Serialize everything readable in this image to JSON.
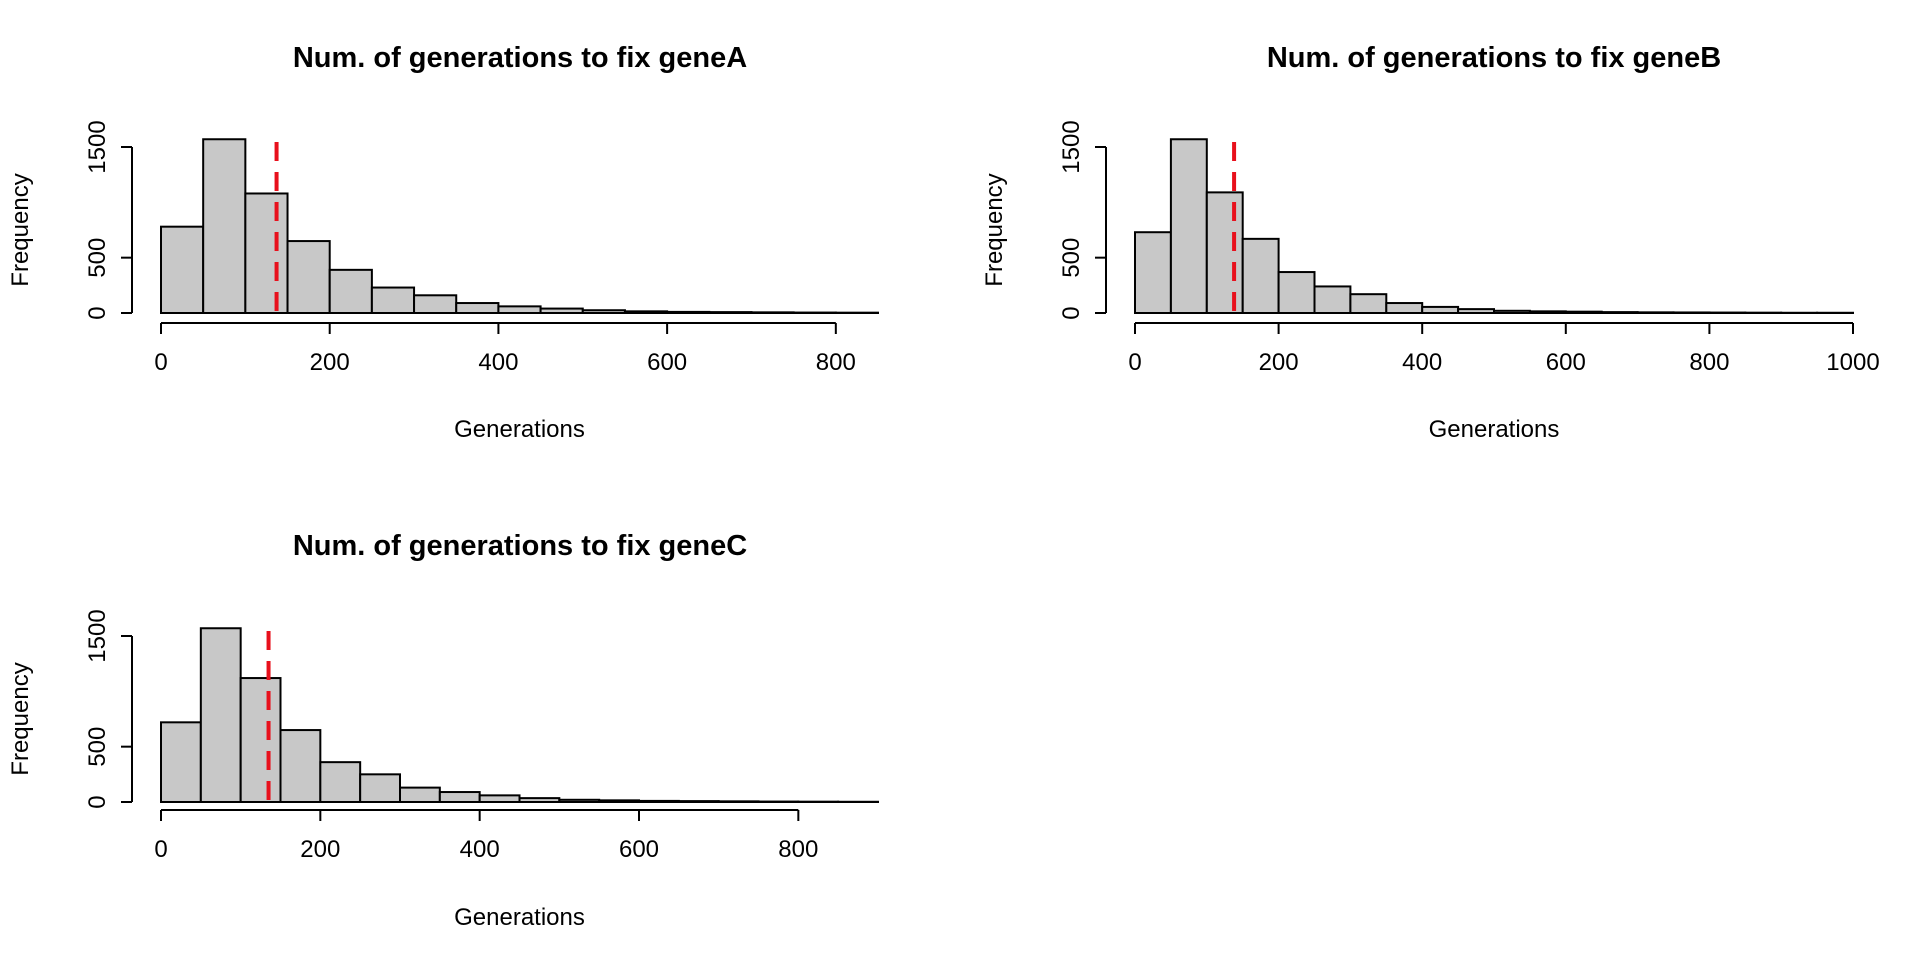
{
  "colors": {
    "bar_fill": "#c8c8c8",
    "bar_stroke": "#000000",
    "mean_line": "#e8101c"
  },
  "chart_data": [
    {
      "type": "bar",
      "subtype": "histogram",
      "title": "Num. of generations to fix  geneA",
      "xlabel": "Generations",
      "ylabel": "Frequency",
      "bin_width": 50,
      "bins": [
        0,
        50,
        100,
        150,
        200,
        250,
        300,
        350,
        400,
        450,
        500,
        550,
        600,
        650,
        700,
        750,
        800
      ],
      "values": [
        780,
        1570,
        1080,
        650,
        390,
        230,
        160,
        90,
        60,
        40,
        25,
        15,
        10,
        8,
        6,
        4,
        3
      ],
      "mean_line_x": 137,
      "xlim": [
        0,
        850
      ],
      "ylim": [
        0,
        1500
      ],
      "x_ticks": [
        0,
        200,
        400,
        600,
        800
      ],
      "y_ticks": [
        0,
        500,
        1500
      ],
      "grid": false
    },
    {
      "type": "bar",
      "subtype": "histogram",
      "title": "Num. of generations to fix  geneB",
      "xlabel": "Generations",
      "ylabel": "Frequency",
      "bin_width": 50,
      "bins": [
        0,
        50,
        100,
        150,
        200,
        250,
        300,
        350,
        400,
        450,
        500,
        550,
        600,
        650,
        700,
        750,
        800,
        850,
        900,
        950
      ],
      "values": [
        730,
        1570,
        1090,
        670,
        370,
        240,
        170,
        90,
        55,
        35,
        20,
        15,
        12,
        8,
        6,
        5,
        4,
        3,
        2,
        2
      ],
      "mean_line_x": 138,
      "xlim": [
        0,
        1000
      ],
      "ylim": [
        0,
        1500
      ],
      "x_ticks": [
        0,
        200,
        400,
        600,
        800,
        1000
      ],
      "y_ticks": [
        0,
        500,
        1500
      ],
      "grid": false
    },
    {
      "type": "bar",
      "subtype": "histogram",
      "title": "Num. of generations to fix  geneC",
      "xlabel": "Generations",
      "ylabel": "Frequency",
      "bin_width": 50,
      "bins": [
        0,
        50,
        100,
        150,
        200,
        250,
        300,
        350,
        400,
        450,
        500,
        550,
        600,
        650,
        700,
        750,
        800,
        850
      ],
      "values": [
        720,
        1570,
        1120,
        650,
        360,
        250,
        130,
        90,
        60,
        35,
        20,
        15,
        10,
        8,
        6,
        4,
        3,
        2
      ],
      "mean_line_x": 135,
      "xlim": [
        0,
        900
      ],
      "ylim": [
        0,
        1500
      ],
      "x_ticks": [
        0,
        200,
        400,
        600,
        800
      ],
      "y_ticks": [
        0,
        500,
        1500
      ],
      "grid": false
    }
  ]
}
